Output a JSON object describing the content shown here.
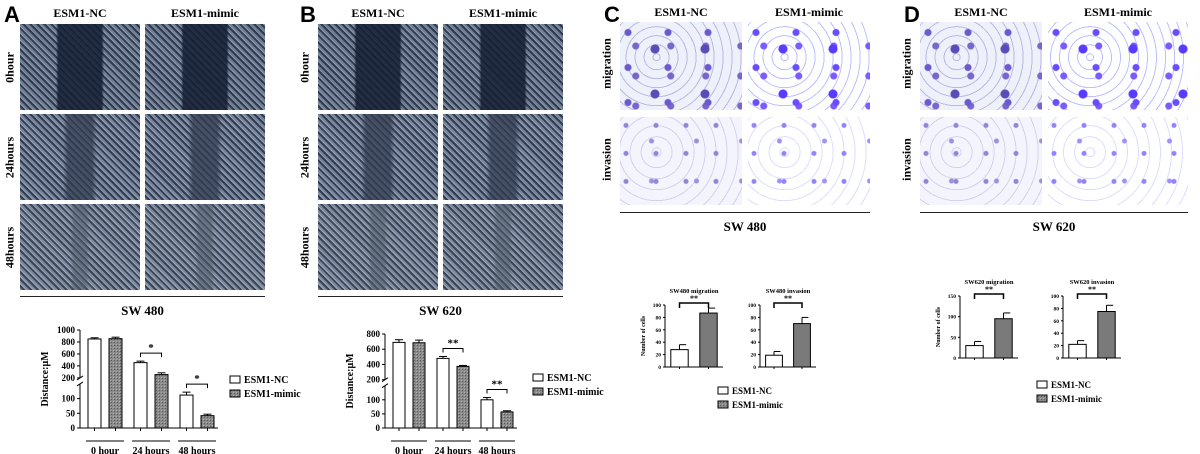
{
  "panels": {
    "A": {
      "label": "A",
      "col1": "ESM1-NC",
      "col2": "ESM1-mimic",
      "rows": [
        "0hour",
        "24hours",
        "48hours"
      ],
      "cell_line": "SW 480"
    },
    "B": {
      "label": "B",
      "col1": "ESM1-NC",
      "col2": "ESM1-mimic",
      "rows": [
        "0hour",
        "24hours",
        "48hours"
      ],
      "cell_line": "SW 620"
    },
    "C": {
      "label": "C",
      "col1": "ESM1-NC",
      "col2": "ESM1-mimic",
      "rows": [
        "migration",
        "invasion"
      ],
      "cell_line": "SW 480"
    },
    "D": {
      "label": "D",
      "col1": "ESM1-NC",
      "col2": "ESM1-mimic",
      "rows": [
        "migration",
        "invasion"
      ],
      "cell_line": "SW 620"
    }
  },
  "legend": {
    "nc": "ESM1-NC",
    "mimic": "ESM1-mimic"
  },
  "colors": {
    "nc": "#ffffff",
    "mimic": "#808080",
    "axis": "#000000"
  },
  "chart_data": [
    {
      "type": "bar",
      "panel": "A",
      "ylabel": "Distance:μM",
      "categories": [
        "0 hour",
        "24 hours",
        "48 hours"
      ],
      "broken_axis": [
        150,
        200
      ],
      "yticks_low": [
        0,
        50,
        100
      ],
      "yticks_high": [
        200,
        400,
        600,
        800,
        1000
      ],
      "ylim": [
        0,
        1000
      ],
      "series": [
        {
          "name": "ESM1-NC",
          "values": [
            850,
            455,
            112
          ],
          "errors": [
            20,
            25,
            10
          ]
        },
        {
          "name": "ESM1-mimic",
          "values": [
            855,
            255,
            42
          ],
          "errors": [
            25,
            30,
            5
          ]
        }
      ],
      "significance": [
        null,
        "*",
        "*"
      ]
    },
    {
      "type": "bar",
      "panel": "B",
      "ylabel": "Distance:μM",
      "categories": [
        "0 hour",
        "24 hours",
        "48 hours"
      ],
      "broken_axis": [
        150,
        200
      ],
      "yticks_low": [
        0,
        50,
        100
      ],
      "yticks_high": [
        200,
        400,
        600,
        800
      ],
      "ylim": [
        0,
        800
      ],
      "series": [
        {
          "name": "ESM1-NC",
          "values": [
            690,
            480,
            100
          ],
          "errors": [
            35,
            25,
            8
          ]
        },
        {
          "name": "ESM1-mimic",
          "values": [
            685,
            375,
            57
          ],
          "errors": [
            35,
            12,
            4
          ]
        }
      ],
      "significance": [
        null,
        "**",
        "**"
      ]
    },
    {
      "type": "bar",
      "panel": "C",
      "title": "SW480 migration",
      "ylabel": "Number of cells",
      "ylim": [
        0,
        100
      ],
      "yticks": [
        0,
        20,
        40,
        60,
        80,
        100
      ],
      "series": [
        {
          "name": "ESM1-NC",
          "values": [
            28
          ],
          "errors": [
            8
          ]
        },
        {
          "name": "ESM1-mimic",
          "values": [
            87
          ],
          "errors": [
            8
          ]
        }
      ],
      "significance": "**"
    },
    {
      "type": "bar",
      "panel": "C",
      "title": "SW480 invasion",
      "ylabel": "",
      "ylim": [
        0,
        100
      ],
      "yticks": [
        0,
        20,
        40,
        60,
        80,
        100
      ],
      "series": [
        {
          "name": "ESM1-NC",
          "values": [
            19
          ],
          "errors": [
            6
          ]
        },
        {
          "name": "ESM1-mimic",
          "values": [
            70
          ],
          "errors": [
            10
          ]
        }
      ],
      "significance": "**"
    },
    {
      "type": "bar",
      "panel": "D",
      "title": "SW620 migration",
      "ylabel": "Number of cells",
      "ylim": [
        0,
        150
      ],
      "yticks": [
        0,
        50,
        100,
        150
      ],
      "series": [
        {
          "name": "ESM1-NC",
          "values": [
            30
          ],
          "errors": [
            10
          ]
        },
        {
          "name": "ESM1-mimic",
          "values": [
            95
          ],
          "errors": [
            14
          ]
        }
      ],
      "significance": "**"
    },
    {
      "type": "bar",
      "panel": "D",
      "title": "SW620 invasion",
      "ylabel": "",
      "ylim": [
        0,
        100
      ],
      "yticks": [
        0,
        20,
        40,
        60,
        80,
        100
      ],
      "series": [
        {
          "name": "ESM1-NC",
          "values": [
            22
          ],
          "errors": [
            6
          ]
        },
        {
          "name": "ESM1-mimic",
          "values": [
            75
          ],
          "errors": [
            10
          ]
        }
      ],
      "significance": "**"
    }
  ]
}
